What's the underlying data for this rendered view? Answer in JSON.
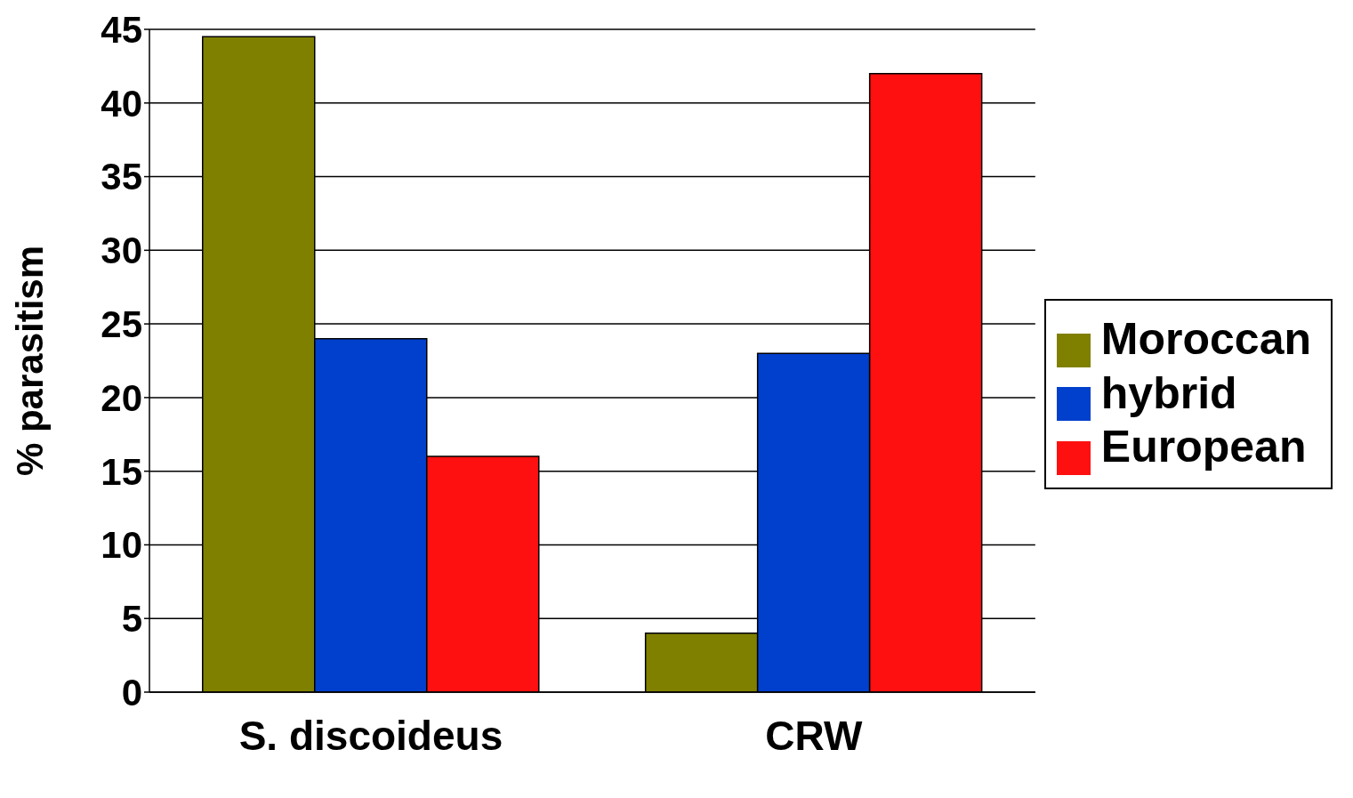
{
  "chart_data": {
    "type": "bar",
    "ylabel": "% parasitism",
    "categories": [
      "S. discoideus",
      "CRW"
    ],
    "series": [
      {
        "name": "Moroccan",
        "color": "#808000",
        "values": [
          44.5,
          4
        ]
      },
      {
        "name": "hybrid",
        "color": "#0040cc",
        "values": [
          24,
          23
        ]
      },
      {
        "name": "European",
        "color": "#ff1010",
        "values": [
          16,
          42
        ]
      }
    ],
    "ylim": [
      0,
      45
    ],
    "yticks": [
      0,
      5,
      10,
      15,
      20,
      25,
      30,
      35,
      40,
      45
    ],
    "grid": "y",
    "legend": "right"
  }
}
